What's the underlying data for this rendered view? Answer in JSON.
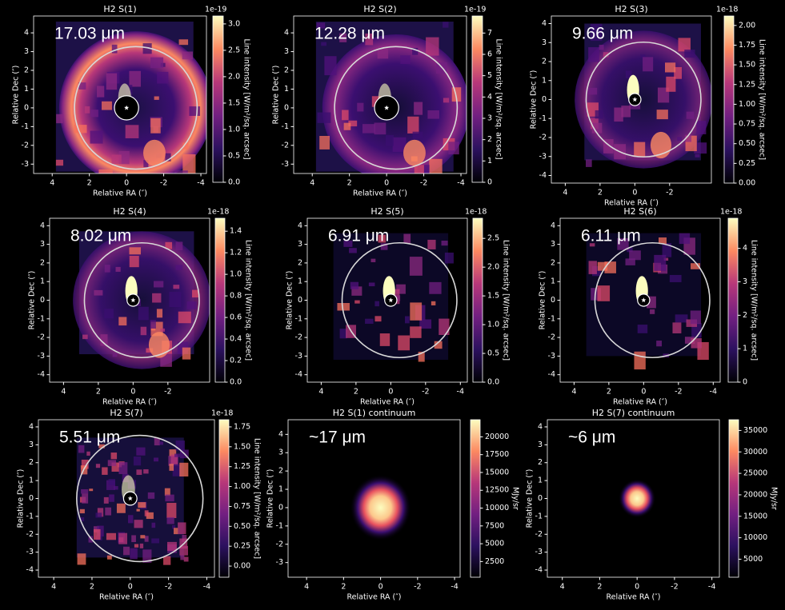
{
  "chart_data": [
    {
      "type": "heatmap",
      "title": "H2 S(1)",
      "annotation": "17.03 μm",
      "xlabel": "Relative RA (″)",
      "ylabel": "Relative Dec (″)",
      "xlim": [
        5.0,
        -4.3
      ],
      "ylim": [
        -3.5,
        4.9
      ],
      "xticks": [
        4,
        2,
        0,
        -2,
        -4
      ],
      "yticks": [
        -3,
        -2,
        -1,
        0,
        1,
        2,
        3,
        4
      ],
      "colormap": "magma",
      "clabel": "Line intensity [W/m²/sq. arcsec]",
      "coffset": "1e-19",
      "clim": [
        0,
        3.15
      ],
      "cticks": [
        {
          "value": 0,
          "label": "0.0"
        },
        0.5,
        {
          "value": 1,
          "label": "1.0"
        },
        1.5,
        {
          "value": 2,
          "label": "2.0"
        },
        2.5,
        {
          "value": 3,
          "label": "3.0"
        }
      ]
    },
    {
      "type": "heatmap",
      "title": "H2 S(2)",
      "annotation": "12.28 μm",
      "xlabel": "Relative RA (″)",
      "ylabel": "Relative Dec (″)",
      "xlim": [
        5.0,
        -4.3
      ],
      "ylim": [
        -3.5,
        4.9
      ],
      "xticks": [
        4,
        2,
        0,
        -2,
        -4
      ],
      "yticks": [
        -3,
        -2,
        -1,
        0,
        1,
        2,
        3,
        4
      ],
      "colormap": "magma",
      "clabel": "Line intensity [W/m²/sq. arcsec]",
      "coffset": "1e-19",
      "clim": [
        0,
        7.8
      ],
      "cticks": [
        0,
        1,
        2,
        3,
        4,
        5,
        6,
        7
      ]
    },
    {
      "type": "heatmap",
      "title": "H2 S(3)",
      "annotation": "9.66 μm",
      "xlabel": "Relative RA (″)",
      "ylabel": "Relative Dec (″)",
      "xlim": [
        4.8,
        -4.4
      ],
      "ylim": [
        -4.4,
        4.4
      ],
      "xticks": [
        4,
        2,
        0,
        -2
      ],
      "yticks": [
        -4,
        -3,
        -2,
        -1,
        0,
        1,
        2,
        3,
        4
      ],
      "colormap": "magma",
      "clabel": "Line intensity [W/m²/sq. arcsec]",
      "coffset": "1e-18",
      "clim": [
        0,
        2.12
      ],
      "cticks": [
        {
          "value": 0,
          "label": "0.00"
        },
        0.25,
        {
          "value": 0.5,
          "label": "0.50"
        },
        0.75,
        {
          "value": 1,
          "label": "1.00"
        },
        1.25,
        {
          "value": 1.5,
          "label": "1.50"
        },
        1.75,
        {
          "value": 2,
          "label": "2.00"
        }
      ]
    },
    {
      "type": "heatmap",
      "title": "H2 S(4)",
      "annotation": "8.02 μm",
      "xlabel": "Relative RA (″)",
      "ylabel": "Relative Dec (″)",
      "xlim": [
        4.8,
        -4.4
      ],
      "ylim": [
        -4.4,
        4.4
      ],
      "xticks": [
        4,
        2,
        0,
        -2
      ],
      "yticks": [
        -4,
        -3,
        -2,
        -1,
        0,
        1,
        2,
        3,
        4
      ],
      "colormap": "magma",
      "clabel": "Line intensity [W/m²/sq. arcsec]",
      "coffset": "1e-18",
      "clim": [
        0,
        1.52
      ],
      "cticks": [
        {
          "value": 0,
          "label": "0.0"
        },
        0.2,
        0.4,
        0.6,
        0.8,
        {
          "value": 1,
          "label": "1.0"
        },
        1.2,
        1.4
      ]
    },
    {
      "type": "heatmap",
      "title": "H2 S(5)",
      "annotation": "6.91 μm",
      "xlabel": "Relative RA (″)",
      "ylabel": "Relative Dec (″)",
      "xlim": [
        4.8,
        -4.4
      ],
      "ylim": [
        -4.4,
        4.4
      ],
      "xticks": [
        4,
        2,
        0,
        -2,
        -4
      ],
      "yticks": [
        -4,
        -3,
        -2,
        -1,
        0,
        1,
        2,
        3,
        4
      ],
      "colormap": "magma",
      "clabel": "Line intensity [W/m²/sq. arcsec]",
      "coffset": "1e-18",
      "clim": [
        0,
        2.85
      ],
      "cticks": [
        {
          "value": 0,
          "label": "0.0"
        },
        0.5,
        {
          "value": 1,
          "label": "1.0"
        },
        1.5,
        {
          "value": 2,
          "label": "2.0"
        },
        2.5
      ]
    },
    {
      "type": "heatmap",
      "title": "H2 S(6)",
      "annotation": "6.11 μm",
      "xlabel": "Relative RA (″)",
      "ylabel": "Relative Dec (″)",
      "xlim": [
        4.8,
        -4.4
      ],
      "ylim": [
        -4.4,
        4.4
      ],
      "xticks": [
        4,
        2,
        0,
        -2,
        -4
      ],
      "yticks": [
        -4,
        -3,
        -2,
        -1,
        0,
        1,
        2,
        3,
        4
      ],
      "colormap": "magma",
      "clabel": "Line intensity [W/m²/sq. arcsec]",
      "coffset": "1e-18",
      "clim": [
        0,
        4.9
      ],
      "cticks": [
        0,
        1,
        2,
        3,
        4
      ]
    },
    {
      "type": "heatmap",
      "title": "H2 S(7)",
      "annotation": "5.51 μm",
      "xlabel": "Relative RA (″)",
      "ylabel": "Relative Dec (″)",
      "xlim": [
        4.8,
        -4.4
      ],
      "ylim": [
        -4.4,
        4.4
      ],
      "xticks": [
        4,
        2,
        0,
        -2,
        -4
      ],
      "yticks": [
        -4,
        -3,
        -2,
        -1,
        0,
        1,
        2,
        3,
        4
      ],
      "colormap": "magma",
      "clabel": "Line intensity [W/m²/sq. arcsec]",
      "coffset": "1e-18",
      "clim": [
        -0.14,
        1.84
      ],
      "cticks": [
        {
          "value": 0,
          "label": "0.00"
        },
        0.25,
        {
          "value": 0.5,
          "label": "0.50"
        },
        0.75,
        {
          "value": 1,
          "label": "1.00"
        },
        1.25,
        {
          "value": 1.5,
          "label": "1.50"
        },
        1.75
      ]
    },
    {
      "type": "heatmap",
      "title": "H2 S(1) continuum",
      "annotation": "~17 μm",
      "xlabel": "Relative RA (″)",
      "ylabel": "Relative Dec (″)",
      "xlim": [
        5.0,
        -4.3
      ],
      "ylim": [
        -3.8,
        4.8
      ],
      "xticks": [
        4,
        2,
        0,
        -2,
        -4
      ],
      "yticks": [
        -3,
        -2,
        -1,
        0,
        1,
        2,
        3,
        4
      ],
      "colormap": "magma",
      "clabel": "MJy/sr",
      "clim": [
        300,
        22400
      ],
      "cticks": [
        2500,
        5000,
        7500,
        10000,
        12500,
        15000,
        17500,
        20000
      ]
    },
    {
      "type": "heatmap",
      "title": "H2 S(7) continuum",
      "annotation": "~6 μm",
      "xlabel": "Relative RA (″)",
      "ylabel": "Relative Dec (″)",
      "xlim": [
        4.8,
        -4.4
      ],
      "ylim": [
        -4.4,
        4.4
      ],
      "xticks": [
        4,
        2,
        0,
        -2,
        -4
      ],
      "yticks": [
        -4,
        -3,
        -2,
        -1,
        0,
        1,
        2,
        3,
        4
      ],
      "colormap": "magma",
      "clabel": "MJy/sr",
      "clim": [
        800,
        37500
      ],
      "cticks": [
        5000,
        10000,
        15000,
        20000,
        25000,
        30000,
        35000
      ]
    }
  ]
}
